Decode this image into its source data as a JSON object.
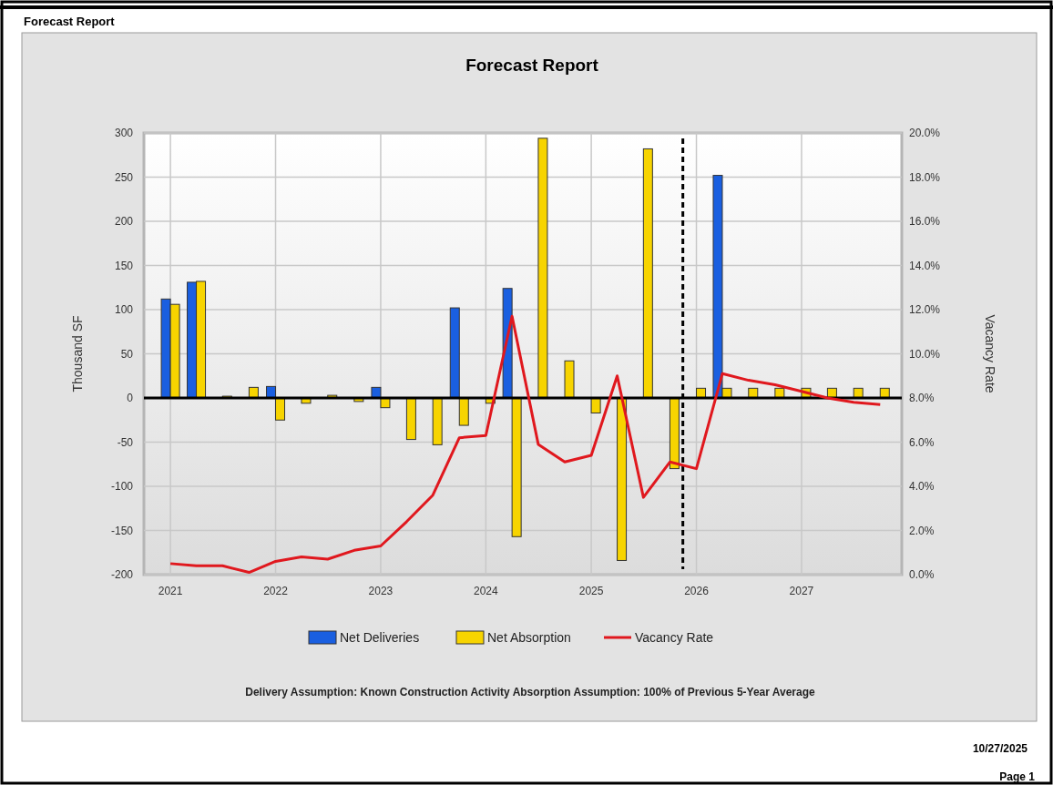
{
  "chart_data": {
    "type": "bar",
    "title": "Forecast Report",
    "ylabel": "Thousand SF",
    "y2label": "Vacancy Rate",
    "x": [
      "2021-01",
      "2021-04",
      "2021-07",
      "2021-10",
      "2022-01",
      "2022-04",
      "2022-07",
      "2022-10",
      "2023-01",
      "2023-04",
      "2023-07",
      "2023-10",
      "2024-01",
      "2024-04",
      "2024-07",
      "2024-10",
      "2025-01",
      "2025-04",
      "2025-07",
      "2025-10",
      "2026-01",
      "2026-04",
      "2026-07",
      "2026-10",
      "2027-01",
      "2027-04",
      "2027-07",
      "2027-10"
    ],
    "xlim": [
      "2020-10-01",
      "2027-12-15"
    ],
    "xticks": [
      "2021",
      "2022",
      "2023",
      "2024",
      "2025",
      "2026",
      "2027"
    ],
    "ylim": [
      -200,
      300
    ],
    "yticks": [
      -200,
      -150,
      -100,
      -50,
      0,
      50,
      100,
      150,
      200,
      250,
      300
    ],
    "y2lim": [
      0,
      20
    ],
    "y2ticks": [
      {
        "value": 0,
        "label": "0.0%"
      },
      {
        "value": 2,
        "label": "2.0%"
      },
      {
        "value": 4,
        "label": "4.0%"
      },
      {
        "value": 6,
        "label": "6.0%"
      },
      {
        "value": 8,
        "label": "8.0%"
      },
      {
        "value": 10,
        "label": "10.0%"
      },
      {
        "value": 12,
        "label": "12.0%"
      },
      {
        "value": 14,
        "label": "14.0%"
      },
      {
        "value": 16,
        "label": "16.0%"
      },
      {
        "value": 18,
        "label": "18.0%"
      },
      {
        "value": 20,
        "label": "20.0%"
      }
    ],
    "series": [
      {
        "name": "Net Deliveries",
        "color": "#1a5fe0",
        "values": [
          112,
          131,
          null,
          null,
          13,
          null,
          null,
          null,
          12,
          null,
          null,
          102,
          null,
          124,
          null,
          null,
          null,
          null,
          null,
          null,
          null,
          252,
          null,
          null,
          null,
          null,
          null,
          null
        ]
      },
      {
        "name": "Net Absorption",
        "color": "#f7d400",
        "values": [
          106,
          132,
          2,
          12,
          -25,
          -6,
          3,
          -4,
          -11,
          -47,
          -53,
          -31,
          -6,
          -157,
          294,
          42,
          -17,
          -184,
          282,
          -80,
          11,
          11,
          11,
          11,
          11,
          11,
          11,
          11
        ]
      },
      {
        "name": "Vacancy Rate",
        "type": "line",
        "axis": "y2",
        "color": "#e0181e",
        "values": [
          0.5,
          0.4,
          0.4,
          0.1,
          0.6,
          0.8,
          0.7,
          1.1,
          1.3,
          2.4,
          3.6,
          6.2,
          6.3,
          11.7,
          5.9,
          5.1,
          5.4,
          9.0,
          3.5,
          5.1,
          4.8,
          9.1,
          8.8,
          8.6,
          8.3,
          8.0,
          7.8,
          7.7
        ]
      }
    ],
    "ref_lines": [
      {
        "axis": "x",
        "value": "2025-11-15",
        "color": "#000000",
        "line_style": "dashed"
      }
    ],
    "grid": true,
    "legend": "bottom",
    "annotations": [
      "Forecast Report",
      "Delivery Assumption: Known Construction Activity   Absorption Assumption: 100% of Previous 5-Year Average",
      "10/27/2025",
      "Page 1"
    ]
  }
}
